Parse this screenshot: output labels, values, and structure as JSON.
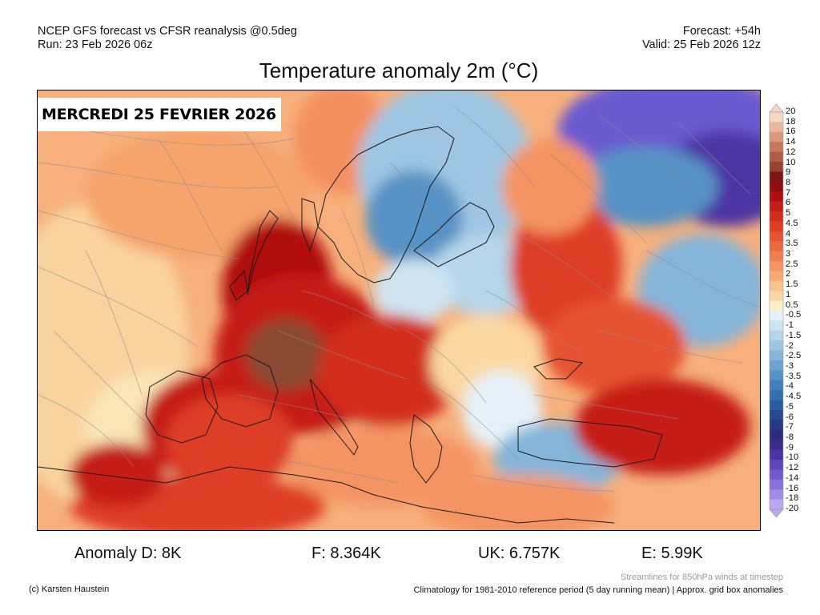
{
  "header": {
    "model_line": "NCEP GFS forecast vs CFSR reanalysis @0.5deg",
    "run_line": "Run: 23 Feb 2026 06z",
    "forecast_line": "Forecast: +54h",
    "valid_line": "Valid: 25 Feb 2026 12z",
    "title": "Temperature anomaly 2m (°C)"
  },
  "map": {
    "date_banner": "MERCREDI 25 FEVRIER 2026"
  },
  "stats": {
    "d": "Anomaly D: 8K",
    "f": "F: 8.364K",
    "uk": "UK: 6.757K",
    "e": "E: 5.99K"
  },
  "footer": {
    "credit": "(c) Karsten Haustein",
    "streamlines_note": "Streamlines for 850hPa winds at timestep",
    "climatology_note": "Climatology for 1981-2010 reference period (5 day running mean) | Approx. grid box anomalies"
  },
  "colorbar": {
    "labels": [
      "20",
      "18",
      "16",
      "14",
      "12",
      "10",
      "9",
      "8",
      "7",
      "6",
      "5",
      "4.5",
      "4",
      "3.5",
      "3",
      "2.5",
      "2",
      "1.5",
      "1",
      "0.5",
      "-0.5",
      "-1",
      "-1.5",
      "-2",
      "-2.5",
      "-3",
      "-3.5",
      "-4",
      "-4.5",
      "-5",
      "-6",
      "-7",
      "-8",
      "-9",
      "-10",
      "-12",
      "-14",
      "-16",
      "-18",
      "-20"
    ],
    "colors": [
      "#f4d6c6",
      "#e9b99f",
      "#d9997a",
      "#c57a5c",
      "#ad5e43",
      "#93452f",
      "#7a1616",
      "#940d0d",
      "#b00f0f",
      "#c51d17",
      "#d32d1e",
      "#de3e26",
      "#e65233",
      "#ec6841",
      "#f07e51",
      "#f49463",
      "#f7aa76",
      "#f9c18b",
      "#fbd8a2",
      "#fdf0c7",
      "#e6f1f8",
      "#cfe4f1",
      "#b6d5ea",
      "#9ec6e2",
      "#85b5d9",
      "#6da4cf",
      "#5692c5",
      "#4380bb",
      "#356eae",
      "#2a5ca0",
      "#254a92",
      "#273a86",
      "#2b2c7a",
      "#3a2a8c",
      "#4b35a3",
      "#5e45ba",
      "#7458cc",
      "#8a70da",
      "#a38ae6",
      "#bda6ef"
    ]
  }
}
